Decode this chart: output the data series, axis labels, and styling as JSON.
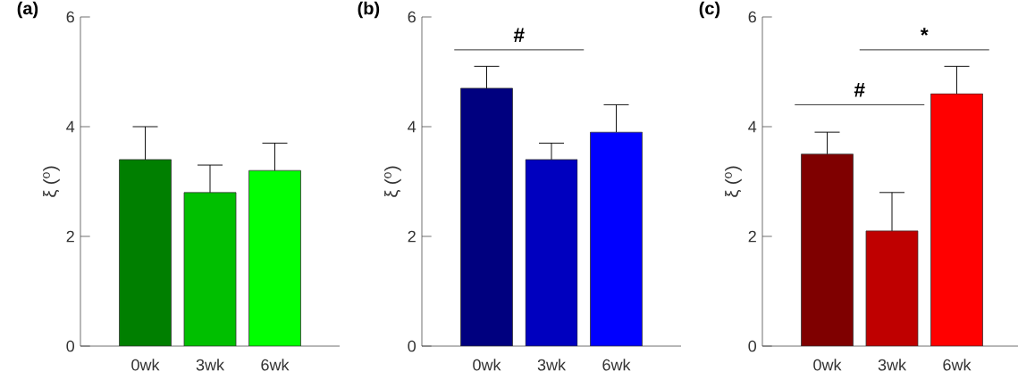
{
  "chart_data": [
    {
      "type": "bar",
      "title": "(a)",
      "ylabel": "ξ ($^{o}$)",
      "categories": [
        "0wk",
        "3wk",
        "6wk"
      ],
      "values": [
        3.4,
        2.8,
        3.2
      ],
      "colors": [
        "#007f00",
        "#00bf00",
        "#00ff00"
      ],
      "errors": [
        [
          3.4,
          4.0
        ],
        [
          2.8,
          3.3
        ],
        [
          3.2,
          3.7
        ]
      ],
      "ylim": [
        0,
        6
      ],
      "yticks": [
        0,
        2,
        4,
        6
      ]
    },
    {
      "type": "bar",
      "title": "(b)",
      "ylabel": "ξ ($^{o}$)",
      "categories": [
        "0wk",
        "3wk",
        "6wk"
      ],
      "values": [
        4.7,
        3.4,
        3.9
      ],
      "colors": [
        "#00007f",
        "#0000bf",
        "#0000ff"
      ],
      "errors": [
        [
          4.7,
          5.1
        ],
        [
          3.4,
          3.7
        ],
        [
          3.9,
          4.4
        ]
      ],
      "ylim": [
        0,
        6
      ],
      "yticks": [
        0,
        2,
        4,
        6
      ],
      "annotations": [
        "#"
      ]
    },
    {
      "type": "bar",
      "title": "(c)",
      "ylabel": "ξ ($^{o}$)",
      "categories": [
        "0wk",
        "3wk",
        "6wk"
      ],
      "values": [
        3.5,
        2.1,
        4.6
      ],
      "colors": [
        "#7f0000",
        "#bf0000",
        "#ff0000"
      ],
      "errors": [
        [
          3.5,
          3.9
        ],
        [
          2.1,
          2.8
        ],
        [
          4.6,
          5.1
        ]
      ],
      "ylim": [
        0,
        6
      ],
      "yticks": [
        0,
        2,
        4,
        6
      ],
      "annotations": [
        "#",
        "*"
      ]
    }
  ]
}
